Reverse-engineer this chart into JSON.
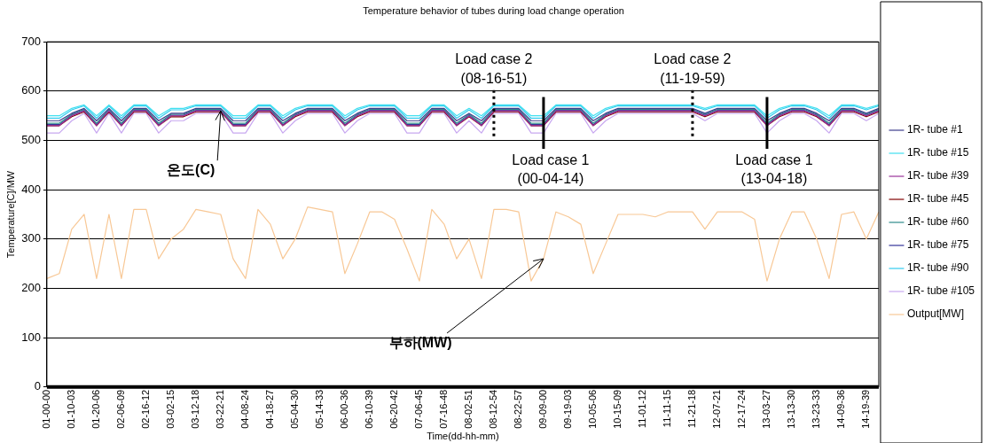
{
  "chart_data": {
    "type": "line",
    "title": "Temperature behavior of tubes during load change operation",
    "xlabel": "Time(dd-hh-mm)",
    "ylabel": "Temperature[C]/MW",
    "categories": [
      "01-00-00",
      null,
      "01-10-03",
      null,
      "01-20-06",
      null,
      "02-06-09",
      null,
      "02-16-12",
      null,
      "03-02-15",
      null,
      "03-12-18",
      null,
      "03-22-21",
      null,
      "04-08-24",
      null,
      "04-18-27",
      null,
      "05-04-30",
      null,
      "05-14-33",
      null,
      "06-00-36",
      null,
      "06-10-39",
      null,
      "06-20-42",
      null,
      "07-06-45",
      null,
      "07-16-48",
      null,
      "08-02-51",
      null,
      "08-12-54",
      null,
      "08-22-57",
      null,
      "09-09-00",
      null,
      "09-19-03",
      null,
      "10-05-06",
      null,
      "10-15-09",
      null,
      "11-01-12",
      null,
      "11-11-15",
      null,
      "11-21-18",
      null,
      "12-07-21",
      null,
      "12-17-24",
      null,
      "13-03-27",
      null,
      "13-13-30",
      null,
      "13-23-33",
      null,
      "14-09-36",
      null,
      "14-19-39",
      null
    ],
    "series": [
      {
        "name": "1R- tube #1",
        "color": "#3c3c8c",
        "values": [
          540,
          540,
          555,
          565,
          540,
          565,
          540,
          565,
          565,
          540,
          555,
          555,
          565,
          565,
          565,
          540,
          540,
          565,
          565,
          540,
          555,
          565,
          565,
          565,
          540,
          555,
          565,
          565,
          565,
          540,
          540,
          565,
          565,
          540,
          555,
          540,
          565,
          565,
          565,
          540,
          540,
          565,
          565,
          565,
          540,
          555,
          565,
          565,
          565,
          565,
          565,
          565,
          565,
          555,
          565,
          565,
          565,
          565,
          540,
          555,
          565,
          565,
          555,
          540,
          565,
          565,
          555,
          565
        ]
      },
      {
        "name": "1R- tube #15",
        "color": "#40e0f0",
        "values": [
          550,
          550,
          565,
          572,
          550,
          572,
          550,
          572,
          572,
          550,
          565,
          565,
          572,
          572,
          572,
          550,
          550,
          572,
          572,
          550,
          565,
          572,
          572,
          572,
          550,
          565,
          572,
          572,
          572,
          550,
          550,
          572,
          572,
          550,
          565,
          550,
          572,
          572,
          572,
          550,
          550,
          572,
          572,
          572,
          550,
          565,
          572,
          572,
          572,
          572,
          572,
          572,
          572,
          565,
          572,
          572,
          572,
          572,
          550,
          565,
          572,
          572,
          565,
          550,
          572,
          572,
          565,
          572
        ]
      },
      {
        "name": "1R- tube #39",
        "color": "#993399",
        "values": [
          530,
          530,
          550,
          560,
          530,
          560,
          530,
          560,
          560,
          530,
          550,
          550,
          560,
          560,
          560,
          530,
          530,
          560,
          560,
          530,
          550,
          560,
          560,
          560,
          530,
          550,
          560,
          560,
          560,
          530,
          530,
          560,
          560,
          530,
          550,
          530,
          560,
          560,
          560,
          530,
          530,
          560,
          560,
          560,
          530,
          550,
          560,
          560,
          560,
          560,
          560,
          560,
          560,
          550,
          560,
          560,
          560,
          560,
          530,
          550,
          560,
          560,
          550,
          530,
          560,
          560,
          550,
          560
        ]
      },
      {
        "name": "1R- tube #45",
        "color": "#800000",
        "values": [
          530,
          530,
          548,
          558,
          530,
          558,
          530,
          558,
          558,
          530,
          548,
          548,
          558,
          558,
          558,
          530,
          530,
          558,
          558,
          530,
          548,
          558,
          558,
          558,
          530,
          548,
          558,
          558,
          558,
          530,
          530,
          558,
          558,
          530,
          548,
          530,
          558,
          558,
          558,
          530,
          530,
          558,
          558,
          558,
          530,
          548,
          558,
          558,
          558,
          558,
          558,
          558,
          558,
          548,
          558,
          558,
          558,
          558,
          530,
          548,
          558,
          558,
          548,
          530,
          558,
          558,
          548,
          558
        ]
      },
      {
        "name": "1R- tube #60",
        "color": "#2e8b8b",
        "values": [
          535,
          535,
          553,
          563,
          535,
          563,
          535,
          563,
          563,
          535,
          553,
          553,
          563,
          563,
          563,
          535,
          535,
          563,
          563,
          535,
          553,
          563,
          563,
          563,
          535,
          553,
          563,
          563,
          563,
          535,
          535,
          563,
          563,
          535,
          553,
          535,
          563,
          563,
          563,
          535,
          535,
          563,
          563,
          563,
          535,
          553,
          563,
          563,
          563,
          563,
          563,
          563,
          563,
          553,
          563,
          563,
          563,
          563,
          535,
          553,
          563,
          563,
          553,
          535,
          563,
          563,
          553,
          563
        ]
      },
      {
        "name": "1R- tube #75",
        "color": "#33339a",
        "values": [
          532,
          532,
          551,
          561,
          532,
          561,
          532,
          561,
          561,
          532,
          551,
          551,
          561,
          561,
          561,
          532,
          532,
          561,
          561,
          532,
          551,
          561,
          561,
          561,
          532,
          551,
          561,
          561,
          561,
          532,
          532,
          561,
          561,
          532,
          551,
          532,
          561,
          561,
          561,
          532,
          532,
          561,
          561,
          561,
          532,
          551,
          561,
          561,
          561,
          561,
          561,
          561,
          561,
          551,
          561,
          561,
          561,
          561,
          532,
          551,
          561,
          561,
          551,
          532,
          561,
          561,
          551,
          561
        ]
      },
      {
        "name": "1R- tube #90",
        "color": "#33ccee",
        "values": [
          545,
          545,
          562,
          570,
          545,
          570,
          545,
          570,
          570,
          545,
          562,
          562,
          570,
          570,
          570,
          545,
          545,
          570,
          570,
          545,
          562,
          570,
          570,
          570,
          545,
          562,
          570,
          570,
          570,
          545,
          545,
          570,
          570,
          545,
          562,
          545,
          570,
          570,
          570,
          545,
          545,
          570,
          570,
          570,
          545,
          562,
          570,
          570,
          570,
          570,
          570,
          570,
          570,
          562,
          570,
          570,
          570,
          570,
          545,
          562,
          570,
          570,
          562,
          545,
          570,
          570,
          562,
          570
        ]
      },
      {
        "name": "1R- tube #105",
        "color": "#c8a8f0",
        "values": [
          515,
          515,
          540,
          555,
          515,
          555,
          515,
          555,
          555,
          515,
          540,
          540,
          555,
          555,
          555,
          515,
          515,
          555,
          555,
          515,
          540,
          555,
          555,
          555,
          515,
          540,
          555,
          555,
          555,
          515,
          515,
          555,
          555,
          515,
          540,
          515,
          555,
          555,
          555,
          515,
          515,
          555,
          555,
          555,
          515,
          540,
          555,
          555,
          555,
          555,
          555,
          555,
          555,
          540,
          555,
          555,
          555,
          555,
          515,
          540,
          555,
          555,
          540,
          515,
          555,
          555,
          540,
          555
        ]
      },
      {
        "name": "Output[MW]",
        "color": "#f8c896",
        "values": [
          220,
          230,
          320,
          350,
          220,
          350,
          220,
          360,
          360,
          260,
          300,
          320,
          360,
          355,
          350,
          260,
          220,
          360,
          330,
          260,
          300,
          365,
          360,
          355,
          230,
          290,
          355,
          355,
          340,
          280,
          215,
          360,
          330,
          260,
          300,
          220,
          360,
          360,
          355,
          215,
          260,
          355,
          345,
          330,
          230,
          290,
          350,
          350,
          350,
          345,
          355,
          355,
          355,
          320,
          355,
          355,
          355,
          340,
          215,
          300,
          355,
          355,
          300,
          220,
          350,
          355,
          300,
          355
        ]
      }
    ],
    "ylim": [
      0,
      700
    ],
    "yticks": [
      0,
      100,
      200,
      300,
      400,
      500,
      600,
      700
    ],
    "grid": "y",
    "legend": "right",
    "ref_lines": [
      {
        "axis": "x",
        "value": "08-12-54",
        "label": "Load case 2\n(08-16-51)",
        "line_style": "dotted"
      },
      {
        "axis": "x",
        "value": "11-21-18",
        "label": "Load case 2\n(11-19-59)",
        "line_style": "dotted"
      },
      {
        "axis": "x",
        "value": "09-09-00",
        "label": "Load case 1\n(00-04-14)",
        "line_style": "solid"
      },
      {
        "axis": "x",
        "value": "13-03-27",
        "label": "Load case 1\n(13-04-18)",
        "line_style": "solid"
      }
    ],
    "annotations": [
      {
        "text": "온도(C)",
        "x": "03-22-21",
        "y": 560
      },
      {
        "text": "부하(MW)",
        "x": "09-09-00",
        "y": 260
      }
    ]
  }
}
